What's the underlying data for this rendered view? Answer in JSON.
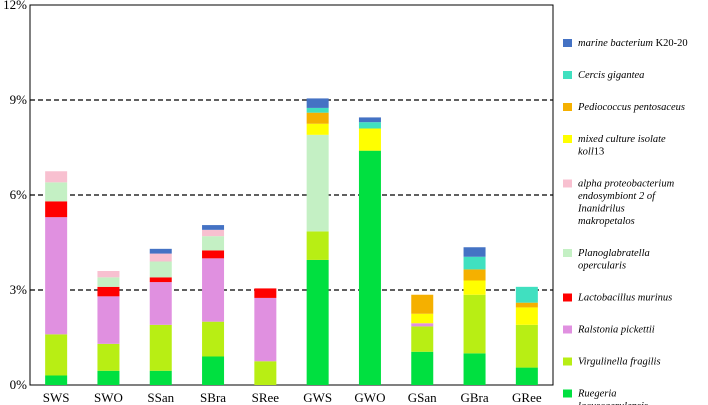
{
  "chart_data": {
    "type": "bar",
    "stacked": true,
    "title": "",
    "xlabel": "",
    "ylabel": "",
    "ylim": [
      0,
      12
    ],
    "yticks": [
      0,
      3,
      6,
      9,
      12
    ],
    "ytick_labels": [
      "0%",
      "3%",
      "6%",
      "9%",
      "12%"
    ],
    "gridlines": [
      3,
      6,
      9
    ],
    "grid_style": "dashed",
    "legend_position": "right",
    "categories": [
      "SWS",
      "SWO",
      "SSan",
      "SBra",
      "SRee",
      "GWS",
      "GWO",
      "GSan",
      "GBra",
      "GRee"
    ],
    "series": [
      {
        "name": "Ruegeria lacuscaerulensis",
        "name_parts": [
          {
            "text": "Ruegeria lacuscaerulensis",
            "italic": true
          }
        ],
        "color": "#00e040",
        "values": [
          0.3,
          0.45,
          0.45,
          0.9,
          0,
          3.95,
          7.4,
          1.05,
          1.0,
          0.55
        ]
      },
      {
        "name": "Virgulinella fragilis",
        "name_parts": [
          {
            "text": "Virgulinella fragilis",
            "italic": true
          }
        ],
        "color": "#b8ee14",
        "values": [
          1.3,
          0.85,
          1.45,
          1.1,
          0.75,
          0.9,
          0,
          0.8,
          1.85,
          1.35
        ]
      },
      {
        "name": "Ralstonia pickettii",
        "name_parts": [
          {
            "text": "Ralstonia pickettii",
            "italic": true
          }
        ],
        "color": "#e090e0",
        "values": [
          3.7,
          1.5,
          1.35,
          2.0,
          2.0,
          0,
          0,
          0.1,
          0,
          0
        ]
      },
      {
        "name": "Lactobacillus murinus",
        "name_parts": [
          {
            "text": "Lactobacillus murinus",
            "italic": true
          }
        ],
        "color": "#ff0000",
        "values": [
          0.5,
          0.3,
          0.15,
          0.25,
          0.3,
          0,
          0,
          0,
          0,
          0
        ]
      },
      {
        "name": "Planoglabratella opercularis",
        "name_parts": [
          {
            "text": "Planoglabratella opercularis",
            "italic": true
          }
        ],
        "color": "#c4f0c4",
        "values": [
          0.6,
          0.3,
          0.5,
          0.45,
          0,
          3.05,
          0,
          0,
          0,
          0
        ]
      },
      {
        "name": "alpha proteobacterium endosymbiont 2 of Inanidrilus makropetalos",
        "name_parts": [
          {
            "text": "alpha proteobacterium endosymbiont 2 of Inanidrilus makropetalos",
            "italic": true
          }
        ],
        "color": "#f8c0d0",
        "values": [
          0.35,
          0.2,
          0.25,
          0.2,
          0,
          0,
          0,
          0,
          0,
          0
        ]
      },
      {
        "name": "mixed culture isolate koll13",
        "name_parts": [
          {
            "text": "mixed culture isolate koll",
            "italic": true
          },
          {
            "text": "13",
            "italic": false
          }
        ],
        "color": "#ffff00",
        "values": [
          0,
          0,
          0,
          0,
          0,
          0.35,
          0.7,
          0.3,
          0.45,
          0.55
        ]
      },
      {
        "name": "Pediococcus pentosaceus",
        "name_parts": [
          {
            "text": "Pediococcus pentosaceus",
            "italic": true
          }
        ],
        "color": "#f5b000",
        "values": [
          0,
          0,
          0,
          0,
          0,
          0.35,
          0,
          0.6,
          0.35,
          0.15
        ]
      },
      {
        "name": "Cercis gigantea",
        "name_parts": [
          {
            "text": "Cercis gigantea",
            "italic": true
          }
        ],
        "color": "#40e0c0",
        "values": [
          0,
          0,
          0,
          0,
          0,
          0.15,
          0.2,
          0,
          0.4,
          0.5
        ]
      },
      {
        "name": "marine bacterium K20-20",
        "name_parts": [
          {
            "text": "marine bacterium",
            "italic": true
          },
          {
            "text": " K20-20",
            "italic": false
          }
        ],
        "color": "#4472c4",
        "values": [
          0,
          0,
          0.15,
          0.15,
          0,
          0.3,
          0.15,
          0,
          0.3,
          0
        ]
      }
    ]
  }
}
